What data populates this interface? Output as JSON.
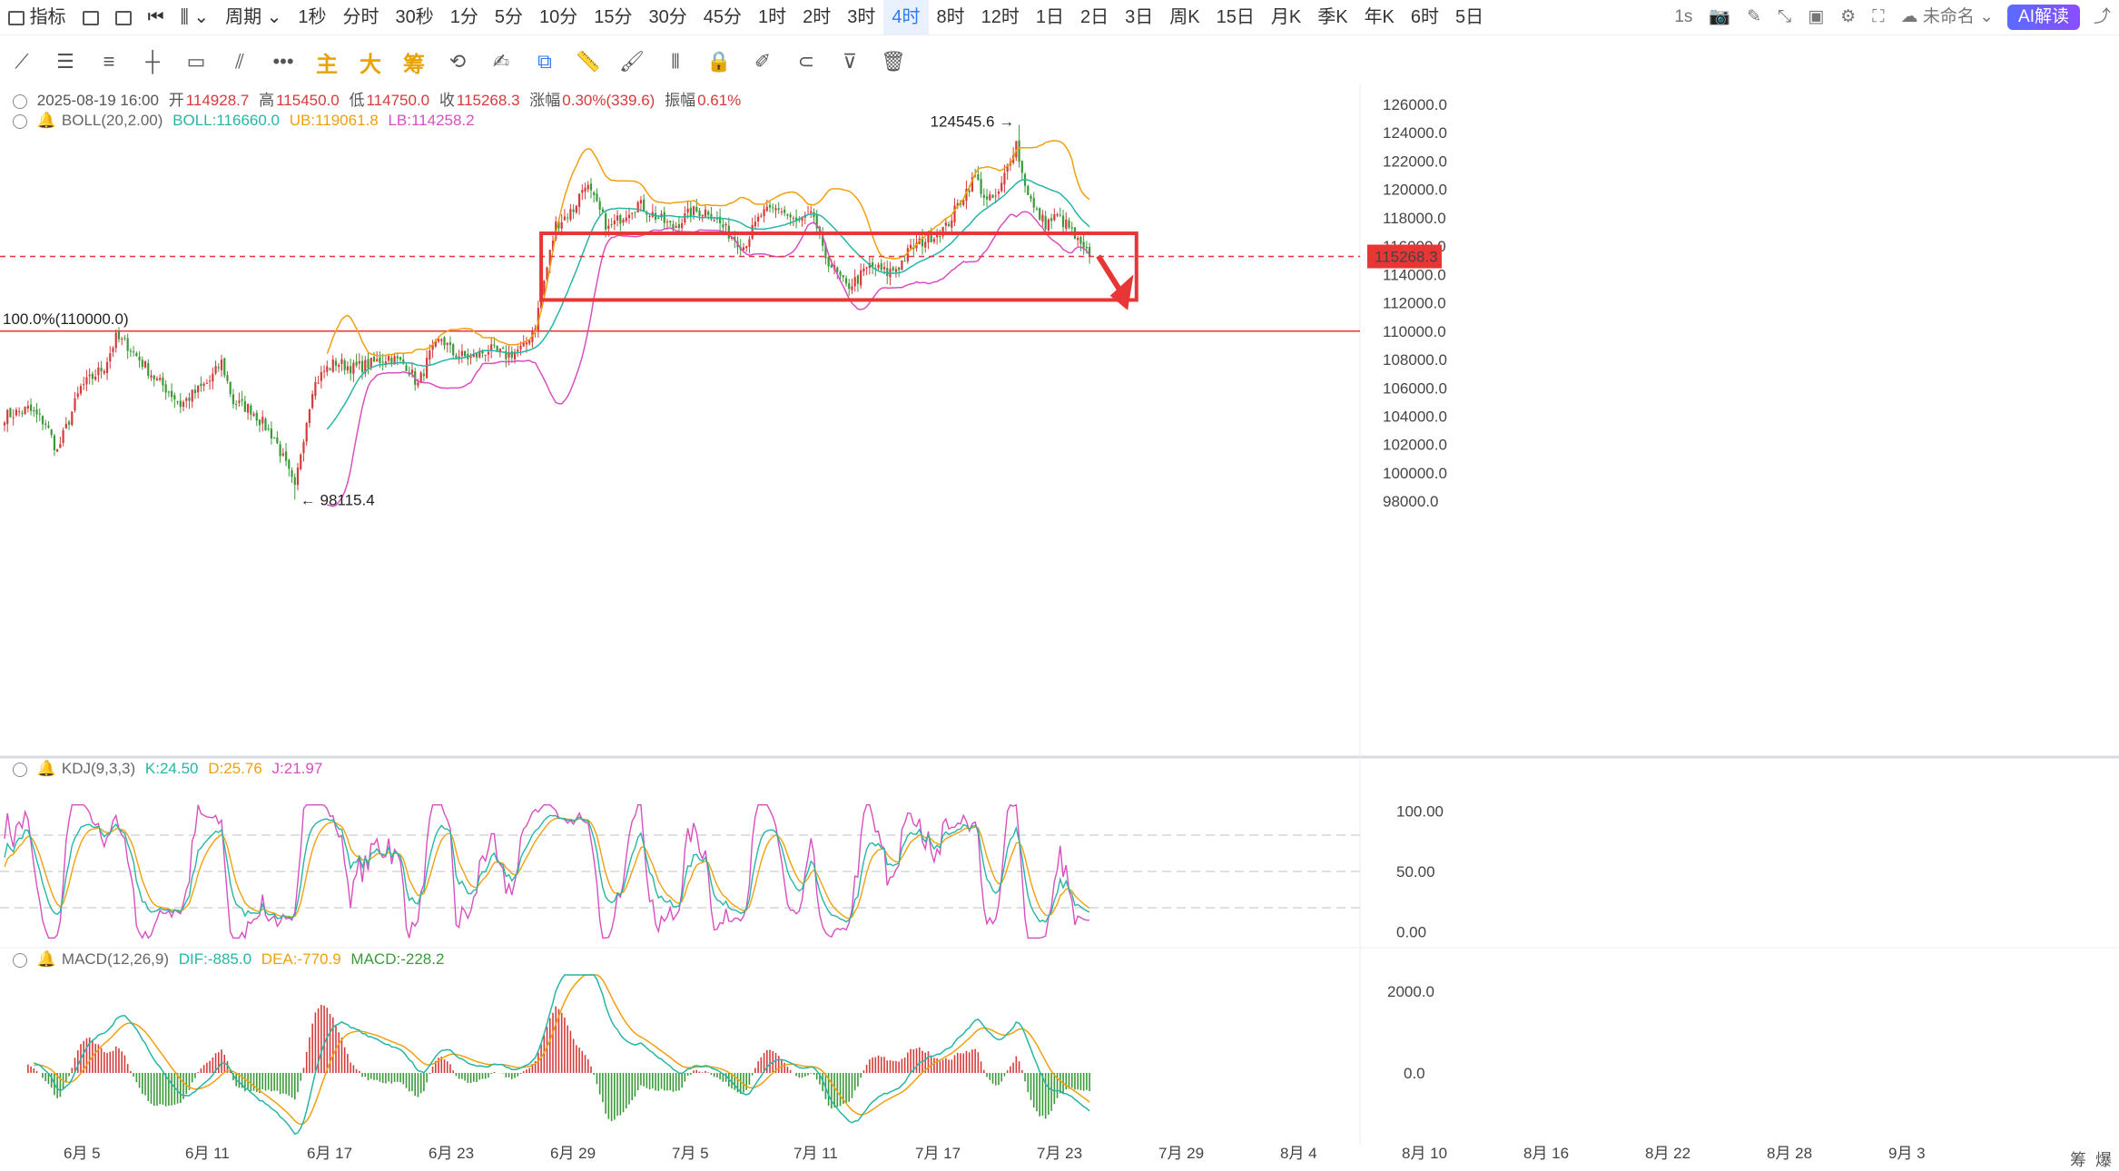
{
  "topbar": {
    "indicator": "指标",
    "period": "周期",
    "timeframes": [
      "1秒",
      "分时",
      "30秒",
      "1分",
      "5分",
      "10分",
      "15分",
      "30分",
      "45分",
      "1时",
      "2时",
      "3时",
      "4时",
      "8时",
      "12时",
      "1日",
      "2日",
      "3日",
      "周K",
      "15日",
      "月K",
      "季K",
      "年K",
      "6时",
      "5日"
    ],
    "active_timeframe": "4时",
    "interval": "1s",
    "layout_name": "未命名",
    "ai_button": "AI解读"
  },
  "toolbar2": {
    "main": "主",
    "big": "大",
    "chip": "筹"
  },
  "ohlc": {
    "date": "2025-08-19 16:00",
    "open_label": "开",
    "open": "114928.7",
    "high_label": "高",
    "high": "115450.0",
    "low_label": "低",
    "low": "114750.0",
    "close_label": "收",
    "close": "115268.3",
    "change_label": "涨幅",
    "change": "0.30%(339.6)",
    "amp_label": "振幅",
    "amp": "0.61%"
  },
  "boll": {
    "name": "BOLL(20,2.00)",
    "mid": "BOLL:116660.0",
    "ub": "UB:119061.8",
    "lb": "LB:114258.2"
  },
  "kdj": {
    "name": "KDJ(9,3,3)",
    "k": "K:24.50",
    "d": "D:25.76",
    "j": "J:21.97"
  },
  "macd": {
    "name": "MACD(12,26,9)",
    "dif": "DIF:-885.0",
    "dea": "DEA:-770.9",
    "macd": "MACD:-228.2"
  },
  "bottom_right": {
    "a": "筹",
    "b": "爆"
  },
  "colors": {
    "up": "#d63b3b",
    "down": "#3a9a3a",
    "mid": "#26b5a6",
    "ub": "#f0a010",
    "lb": "#d84fc0",
    "accent": "#2f7af5",
    "box": "#e83535"
  },
  "chart_data": {
    "type": "candlestick",
    "price_axis": {
      "range": [
        97500,
        126700
      ],
      "ticks": [
        "126000.0",
        "124000.0",
        "122000.0",
        "120000.0",
        "118000.0",
        "116000.0",
        "114000.0",
        "112000.0",
        "110000.0",
        "108000.0",
        "106000.0",
        "104000.0",
        "102000.0",
        "100000.0",
        "98000.0"
      ]
    },
    "x_ticks": [
      "6月 5",
      "6月 11",
      "6月 17",
      "6月 23",
      "6月 29",
      "7月 5",
      "7月 11",
      "7月 17",
      "7月 23",
      "7月 29",
      "8月 4",
      "8月 10",
      "8月 16",
      "8月 22",
      "8月 28",
      "9月 3"
    ],
    "anchors": [
      [
        0,
        104000
      ],
      [
        8,
        104500
      ],
      [
        14,
        103500
      ],
      [
        18,
        101500
      ],
      [
        26,
        106000
      ],
      [
        34,
        107500
      ],
      [
        38,
        109500
      ],
      [
        42,
        109000
      ],
      [
        48,
        107500
      ],
      [
        52,
        106500
      ],
      [
        56,
        105800
      ],
      [
        60,
        104800
      ],
      [
        64,
        105500
      ],
      [
        70,
        106500
      ],
      [
        74,
        107800
      ],
      [
        78,
        105000
      ],
      [
        84,
        104500
      ],
      [
        88,
        103500
      ],
      [
        92,
        102500
      ],
      [
        96,
        100500
      ],
      [
        99,
        98800
      ],
      [
        101,
        101500
      ],
      [
        105,
        106000
      ],
      [
        109,
        107200
      ],
      [
        113,
        107800
      ],
      [
        119,
        107400
      ],
      [
        125,
        107700
      ],
      [
        131,
        108200
      ],
      [
        137,
        107600
      ],
      [
        141,
        106200
      ],
      [
        145,
        108300
      ],
      [
        149,
        109500
      ],
      [
        153,
        108400
      ],
      [
        159,
        108100
      ],
      [
        165,
        108700
      ],
      [
        171,
        108300
      ],
      [
        177,
        108800
      ],
      [
        181,
        110500
      ],
      [
        184,
        113500
      ],
      [
        188,
        117500
      ],
      [
        194,
        118600
      ],
      [
        198,
        120500
      ],
      [
        202,
        118800
      ],
      [
        206,
        117200
      ],
      [
        212,
        118400
      ],
      [
        216,
        119000
      ],
      [
        222,
        118100
      ],
      [
        228,
        117300
      ],
      [
        234,
        118400
      ],
      [
        240,
        118500
      ],
      [
        246,
        117100
      ],
      [
        252,
        116000
      ],
      [
        258,
        118200
      ],
      [
        264,
        118700
      ],
      [
        270,
        117600
      ],
      [
        276,
        118100
      ],
      [
        279,
        115600
      ],
      [
        283,
        114300
      ],
      [
        287,
        113100
      ],
      [
        291,
        113700
      ],
      [
        295,
        114600
      ],
      [
        301,
        114100
      ],
      [
        305,
        114600
      ],
      [
        309,
        115800
      ],
      [
        315,
        116600
      ],
      [
        321,
        117300
      ],
      [
        327,
        119600
      ],
      [
        331,
        120900
      ],
      [
        335,
        119100
      ],
      [
        339,
        119600
      ],
      [
        343,
        122300
      ],
      [
        345,
        123300
      ],
      [
        347,
        121100
      ],
      [
        351,
        118600
      ],
      [
        355,
        117600
      ],
      [
        359,
        118100
      ],
      [
        363,
        117300
      ],
      [
        367,
        115900
      ],
      [
        370,
        115268
      ]
    ],
    "annotations": {
      "high": "124545.6",
      "low": "98115.4",
      "level_line": "100.0%(110000.0)",
      "current_price": "115268.3"
    },
    "kdj_axis": {
      "ticks": [
        "100.00",
        "50.00",
        "0.00"
      ]
    },
    "macd_axis": {
      "ticks": [
        "2000.0",
        "0.0"
      ]
    }
  }
}
